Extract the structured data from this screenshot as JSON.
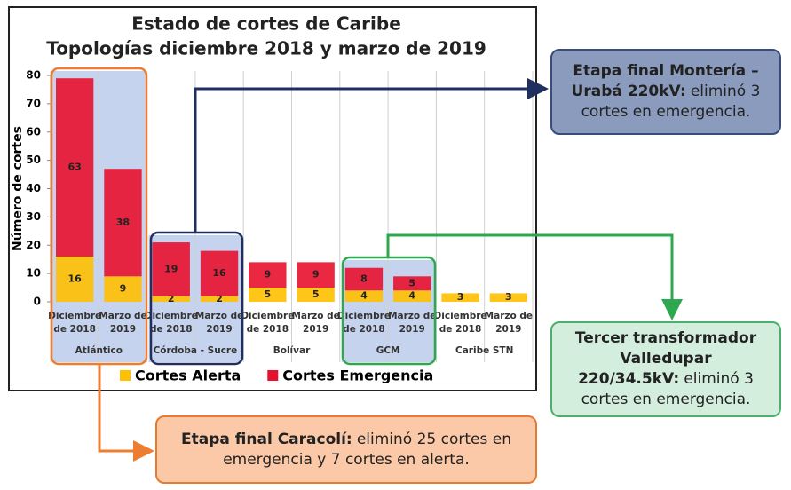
{
  "chart_data": {
    "type": "stacked-bar",
    "title": [
      "Estado de cortes de Caribe",
      "Topologías diciembre 2018 y marzo de 2019"
    ],
    "y_label": "Número de cortes",
    "categories": [
      [
        "Diciembre",
        "de 2018"
      ],
      [
        "Marzo de",
        "2019"
      ],
      [
        "Diciembre",
        "de 2018"
      ],
      [
        "Marzo de",
        "2019"
      ],
      [
        "Diciembre",
        "de 2018"
      ],
      [
        "Marzo de",
        "2019"
      ],
      [
        "Diciembre",
        "de 2018"
      ],
      [
        "Marzo de",
        "2019"
      ],
      [
        "Diciembre",
        "de 2018"
      ],
      [
        "Marzo de",
        "2019"
      ]
    ],
    "groups": [
      "Atlántico",
      "Córdoba - Sucre",
      "Bolívar",
      "GCM",
      "Caribe STN"
    ],
    "series": [
      {
        "name": "Cortes Alerta",
        "color": "#ffc000",
        "values": [
          16,
          9,
          2,
          2,
          5,
          5,
          4,
          4,
          3,
          3
        ]
      },
      {
        "name": "Cortes Emergencia",
        "color": "#e8112d",
        "values": [
          63,
          38,
          19,
          16,
          9,
          9,
          8,
          5,
          null,
          null
        ]
      }
    ],
    "ylim": [
      0,
      80
    ],
    "yticks": [
      0,
      10,
      20,
      30,
      40,
      50,
      60,
      70,
      80
    ],
    "grid": true,
    "legend": "bottom"
  },
  "annotations": [
    {
      "bold": "Etapa final Montería – Urabá 220kV:",
      "text": "eliminó 3 cortes en emergencia."
    },
    {
      "bold": "Tercer transformador Valledupar 220/34.5kV:",
      "text": "eliminó 3 cortes en emergencia."
    },
    {
      "bold": "Etapa final Caracolí:",
      "text": "eliminó 25 cortes en emergencia y 7 cortes en alerta."
    }
  ]
}
